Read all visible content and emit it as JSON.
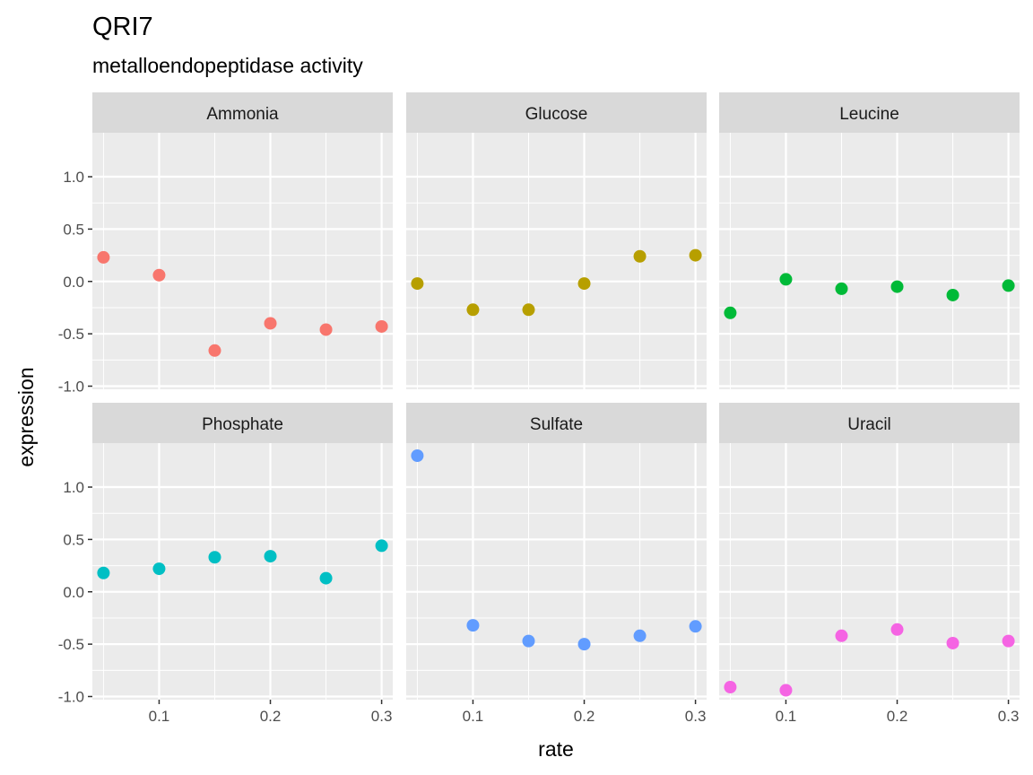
{
  "chart_data": {
    "type": "scatter",
    "title": "QRI7",
    "subtitle": "metalloendopeptidase activity",
    "xlabel": "rate",
    "ylabel": "expression",
    "facet_layout": {
      "rows": 2,
      "cols": 3
    },
    "xlim": [
      0.04,
      0.31
    ],
    "ylim": [
      -1.03,
      1.42
    ],
    "x_ticks": [
      0.1,
      0.2,
      0.3
    ],
    "x_tick_labels": [
      "0.1",
      "0.2",
      "0.3"
    ],
    "y_ticks": [
      -1.0,
      -0.5,
      0.0,
      0.5,
      1.0
    ],
    "y_tick_labels": [
      "-1.0",
      "-0.5",
      "0.0",
      "0.5",
      "1.0"
    ],
    "grid": true,
    "legend": "none",
    "panels": [
      {
        "name": "Ammonia",
        "color": "#F8766D",
        "x": [
          0.05,
          0.1,
          0.15,
          0.2,
          0.25,
          0.3
        ],
        "y": [
          0.23,
          0.06,
          -0.66,
          -0.4,
          -0.46,
          -0.43
        ]
      },
      {
        "name": "Glucose",
        "color": "#B79F00",
        "x": [
          0.05,
          0.1,
          0.15,
          0.2,
          0.25,
          0.3
        ],
        "y": [
          -0.02,
          -0.27,
          -0.27,
          -0.02,
          0.24,
          0.25
        ]
      },
      {
        "name": "Leucine",
        "color": "#00BA38",
        "x": [
          0.05,
          0.1,
          0.15,
          0.2,
          0.25,
          0.3
        ],
        "y": [
          -0.3,
          0.02,
          -0.07,
          -0.05,
          -0.13,
          -0.04
        ]
      },
      {
        "name": "Phosphate",
        "color": "#00BFC4",
        "x": [
          0.05,
          0.1,
          0.15,
          0.2,
          0.25,
          0.3
        ],
        "y": [
          0.18,
          0.22,
          0.33,
          0.34,
          0.13,
          0.44
        ]
      },
      {
        "name": "Sulfate",
        "color": "#619CFF",
        "x": [
          0.05,
          0.1,
          0.15,
          0.2,
          0.25,
          0.3
        ],
        "y": [
          1.3,
          -0.32,
          -0.47,
          -0.5,
          -0.42,
          -0.33
        ]
      },
      {
        "name": "Uracil",
        "color": "#F564E3",
        "x": [
          0.05,
          0.1,
          0.15,
          0.2,
          0.25,
          0.3
        ],
        "y": [
          -0.91,
          -0.94,
          -0.42,
          -0.36,
          -0.49,
          -0.47
        ]
      }
    ]
  }
}
